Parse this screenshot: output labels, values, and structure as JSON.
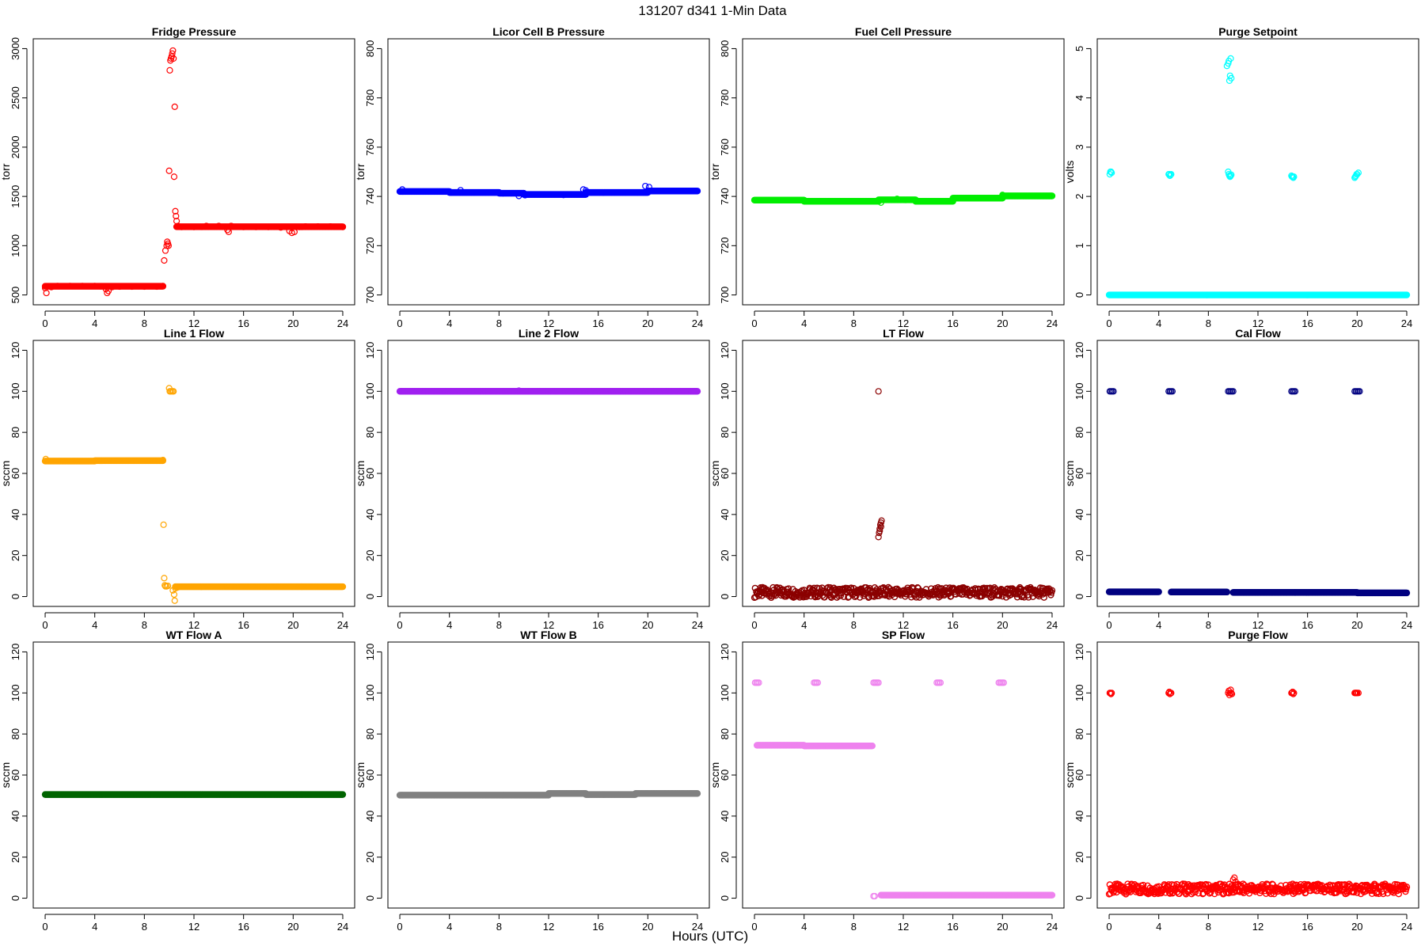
{
  "figure": {
    "title": "131207    d341    1-Min Data",
    "xlabel": "Hours (UTC)"
  },
  "chart_data": [
    {
      "type": "scatter",
      "title": "Fridge Pressure",
      "ylabel": "torr",
      "xlim": [
        0,
        24
      ],
      "ylim": [
        500,
        3000
      ],
      "xticks": [
        0,
        4,
        8,
        12,
        16,
        20,
        24
      ],
      "yticks": [
        500,
        1000,
        1500,
        2000,
        2500,
        3000
      ],
      "color": "#ff0000",
      "points": [
        [
          0.0,
          570
        ],
        [
          0.1,
          520
        ],
        [
          0.5,
          580
        ],
        [
          1,
          590
        ],
        [
          2,
          590
        ],
        [
          3,
          590
        ],
        [
          4,
          590
        ],
        [
          4.9,
          560
        ],
        [
          5,
          520
        ],
        [
          5.1,
          540
        ],
        [
          5.4,
          580
        ],
        [
          6,
          585
        ],
        [
          7,
          585
        ],
        [
          8,
          585
        ],
        [
          9,
          585
        ],
        [
          9.5,
          590
        ],
        [
          9.6,
          850
        ],
        [
          9.7,
          950
        ],
        [
          9.8,
          1000
        ],
        [
          9.85,
          1040
        ],
        [
          9.9,
          1020
        ],
        [
          9.95,
          1000
        ],
        [
          10.0,
          1760
        ],
        [
          10.05,
          2780
        ],
        [
          10.1,
          2880
        ],
        [
          10.15,
          2900
        ],
        [
          10.2,
          2920
        ],
        [
          10.25,
          2950
        ],
        [
          10.3,
          2980
        ],
        [
          10.35,
          2900
        ],
        [
          10.4,
          1700
        ],
        [
          10.45,
          2410
        ],
        [
          10.5,
          1350
        ],
        [
          10.55,
          1300
        ],
        [
          10.6,
          1250
        ],
        [
          10.7,
          1200
        ],
        [
          11,
          1190
        ],
        [
          12,
          1190
        ],
        [
          13,
          1200
        ],
        [
          14,
          1200
        ],
        [
          14.7,
          1160
        ],
        [
          14.8,
          1140
        ],
        [
          15,
          1200
        ],
        [
          16,
          1190
        ],
        [
          17,
          1190
        ],
        [
          18,
          1190
        ],
        [
          19,
          1185
        ],
        [
          19.7,
          1150
        ],
        [
          19.9,
          1130
        ],
        [
          20.1,
          1140
        ],
        [
          20.5,
          1190
        ],
        [
          21,
          1195
        ],
        [
          22,
          1195
        ],
        [
          23,
          1195
        ],
        [
          24,
          1190
        ]
      ],
      "segments": [
        {
          "x": [
            0,
            9.5
          ],
          "y": 588
        },
        {
          "x": [
            10.6,
            24
          ],
          "y": 1192
        }
      ]
    },
    {
      "type": "scatter",
      "title": "Licor Cell B Pressure",
      "ylabel": "torr",
      "xlim": [
        0,
        24
      ],
      "ylim": [
        700,
        800
      ],
      "xticks": [
        0,
        4,
        8,
        12,
        16,
        20,
        24
      ],
      "yticks": [
        700,
        720,
        740,
        760,
        780,
        800
      ],
      "color": "#0000ff",
      "points": [
        [
          0.2,
          742.8
        ],
        [
          4.9,
          742.5
        ],
        [
          9.6,
          740.2
        ],
        [
          10.1,
          740.5
        ],
        [
          13.2,
          740.6
        ],
        [
          14.8,
          742.8
        ],
        [
          15.0,
          742.4
        ],
        [
          19.8,
          744.2
        ],
        [
          20.1,
          743.8
        ]
      ],
      "segments": [
        {
          "x": [
            0,
            4
          ],
          "y": 742
        },
        {
          "x": [
            4,
            8
          ],
          "y": 741.6
        },
        {
          "x": [
            8,
            10
          ],
          "y": 741.3
        },
        {
          "x": [
            10,
            15
          ],
          "y": 740.8
        },
        {
          "x": [
            15,
            20
          ],
          "y": 741.6
        },
        {
          "x": [
            20,
            24
          ],
          "y": 742.2
        }
      ]
    },
    {
      "type": "scatter",
      "title": "Fuel Cell Pressure",
      "ylabel": "torr",
      "xlim": [
        0,
        24
      ],
      "ylim": [
        700,
        800
      ],
      "xticks": [
        0,
        4,
        8,
        12,
        16,
        20,
        24
      ],
      "yticks": [
        700,
        720,
        740,
        760,
        780,
        800
      ],
      "color": "#00ee00",
      "points": [
        [
          10.2,
          737.5
        ],
        [
          11.5,
          739
        ],
        [
          13,
          738
        ],
        [
          20,
          740.6
        ]
      ],
      "segments": [
        {
          "x": [
            0,
            4
          ],
          "y": 738.5
        },
        {
          "x": [
            4,
            10
          ],
          "y": 738
        },
        {
          "x": [
            10,
            13
          ],
          "y": 738.6
        },
        {
          "x": [
            13,
            16
          ],
          "y": 738
        },
        {
          "x": [
            16,
            20
          ],
          "y": 739.3
        },
        {
          "x": [
            20,
            24
          ],
          "y": 740.2
        }
      ]
    },
    {
      "type": "scatter",
      "title": "Purge Setpoint",
      "ylabel": "volts",
      "xlim": [
        0,
        24
      ],
      "ylim": [
        0,
        5
      ],
      "xticks": [
        0,
        4,
        8,
        12,
        16,
        20,
        24
      ],
      "yticks": [
        0,
        1,
        2,
        3,
        4,
        5
      ],
      "color": "#00ffff",
      "points": [
        [
          0.05,
          2.45
        ],
        [
          0.1,
          2.5
        ],
        [
          0.15,
          2.5
        ],
        [
          0.2,
          2.48
        ],
        [
          4.8,
          2.45
        ],
        [
          4.85,
          2.45
        ],
        [
          4.9,
          2.42
        ],
        [
          4.95,
          2.44
        ],
        [
          5.0,
          2.45
        ],
        [
          9.6,
          2.5
        ],
        [
          9.65,
          2.45
        ],
        [
          9.7,
          2.42
        ],
        [
          9.75,
          2.4
        ],
        [
          9.8,
          2.42
        ],
        [
          9.85,
          2.44
        ],
        [
          9.5,
          4.65
        ],
        [
          9.6,
          4.7
        ],
        [
          9.65,
          4.75
        ],
        [
          9.7,
          4.35
        ],
        [
          9.75,
          4.45
        ],
        [
          9.8,
          4.8
        ],
        [
          9.85,
          4.4
        ],
        [
          14.7,
          2.42
        ],
        [
          14.75,
          2.4
        ],
        [
          14.8,
          2.4
        ],
        [
          14.85,
          2.38
        ],
        [
          14.9,
          2.4
        ],
        [
          19.8,
          2.38
        ],
        [
          19.85,
          2.4
        ],
        [
          19.9,
          2.42
        ],
        [
          19.95,
          2.45
        ],
        [
          20.0,
          2.45
        ],
        [
          20.1,
          2.48
        ],
        [
          9.7,
          0.0
        ]
      ],
      "segments": [
        {
          "x": [
            0,
            24
          ],
          "y": 0.0
        }
      ]
    },
    {
      "type": "scatter",
      "title": "Line 1 Flow",
      "ylabel": "sccm",
      "xlim": [
        0,
        24
      ],
      "ylim": [
        0,
        120
      ],
      "xticks": [
        0,
        4,
        8,
        12,
        16,
        20,
        24
      ],
      "yticks": [
        0,
        20,
        40,
        60,
        80,
        100,
        120
      ],
      "color": "#ffa500",
      "points": [
        [
          0.05,
          67
        ],
        [
          9.5,
          66.5
        ],
        [
          9.55,
          35
        ],
        [
          9.6,
          9
        ],
        [
          9.65,
          5.5
        ],
        [
          9.7,
          5
        ],
        [
          9.8,
          5
        ],
        [
          9.9,
          5.2
        ],
        [
          10.0,
          101.5
        ],
        [
          10.05,
          100
        ],
        [
          10.1,
          100
        ],
        [
          10.2,
          100
        ],
        [
          10.3,
          100
        ],
        [
          10.35,
          100
        ],
        [
          10.3,
          3
        ],
        [
          10.4,
          1
        ],
        [
          10.45,
          -2
        ],
        [
          10.5,
          4
        ],
        [
          10.7,
          4.5
        ]
      ],
      "segments": [
        {
          "x": [
            0,
            4
          ],
          "y": 66
        },
        {
          "x": [
            4,
            9.5
          ],
          "y": 66.2
        },
        {
          "x": [
            10.5,
            24
          ],
          "y": 4.8
        }
      ]
    },
    {
      "type": "scatter",
      "title": "Line 2 Flow",
      "ylabel": "sccm",
      "xlim": [
        0,
        24
      ],
      "ylim": [
        0,
        120
      ],
      "xticks": [
        0,
        4,
        8,
        12,
        16,
        20,
        24
      ],
      "yticks": [
        0,
        20,
        40,
        60,
        80,
        100,
        120
      ],
      "color": "#a020f0",
      "points": [
        [
          9.6,
          100.3
        ]
      ],
      "segments": [
        {
          "x": [
            0,
            24
          ],
          "y": 100
        }
      ]
    },
    {
      "type": "scatter",
      "title": "LT Flow",
      "ylabel": "sccm",
      "xlim": [
        0,
        24
      ],
      "ylim": [
        0,
        120
      ],
      "xticks": [
        0,
        4,
        8,
        12,
        16,
        20,
        24
      ],
      "yticks": [
        0,
        20,
        40,
        60,
        80,
        100,
        120
      ],
      "color": "#8b0000",
      "points": [
        [
          10.0,
          100
        ],
        [
          10.0,
          29
        ],
        [
          10.05,
          31
        ],
        [
          10.1,
          33
        ],
        [
          10.15,
          35
        ],
        [
          10.2,
          36
        ],
        [
          10.25,
          37
        ],
        [
          10.2,
          34
        ],
        [
          10.1,
          32
        ]
      ],
      "segments": [
        {
          "x": [
            0,
            24
          ],
          "y": 2,
          "spread": 2.5
        }
      ]
    },
    {
      "type": "scatter",
      "title": "Cal Flow",
      "ylabel": "sccm",
      "xlim": [
        0,
        24
      ],
      "ylim": [
        0,
        120
      ],
      "xticks": [
        0,
        4,
        8,
        12,
        16,
        20,
        24
      ],
      "yticks": [
        0,
        20,
        40,
        60,
        80,
        100,
        120
      ],
      "color": "#000080",
      "points": [
        [
          0.05,
          100
        ],
        [
          0.15,
          100
        ],
        [
          0.25,
          100
        ],
        [
          0.35,
          100
        ],
        [
          4.8,
          100
        ],
        [
          4.9,
          100
        ],
        [
          5.0,
          100
        ],
        [
          5.1,
          100
        ],
        [
          9.6,
          100
        ],
        [
          9.7,
          100
        ],
        [
          9.8,
          100
        ],
        [
          9.9,
          100
        ],
        [
          10.0,
          100
        ],
        [
          14.7,
          100
        ],
        [
          14.8,
          100
        ],
        [
          14.9,
          100
        ],
        [
          15.0,
          100
        ],
        [
          19.8,
          100
        ],
        [
          19.9,
          100
        ],
        [
          20.0,
          100
        ],
        [
          20.1,
          100
        ],
        [
          20.2,
          100
        ]
      ],
      "segments": [
        {
          "x": [
            0,
            4
          ],
          "y": 2.3
        },
        {
          "x": [
            5,
            9.5
          ],
          "y": 2.2
        },
        {
          "x": [
            10,
            15
          ],
          "y": 2.0
        },
        {
          "x": [
            15,
            20
          ],
          "y": 2.0
        },
        {
          "x": [
            20,
            24
          ],
          "y": 1.8
        }
      ]
    },
    {
      "type": "scatter",
      "title": "WT Flow A",
      "ylabel": "sccm",
      "xlim": [
        0,
        24
      ],
      "ylim": [
        0,
        120
      ],
      "xticks": [
        0,
        4,
        8,
        12,
        16,
        20,
        24
      ],
      "yticks": [
        0,
        20,
        40,
        60,
        80,
        100,
        120
      ],
      "color": "#006400",
      "points": [],
      "segments": [
        {
          "x": [
            0,
            24
          ],
          "y": 50.5
        }
      ]
    },
    {
      "type": "scatter",
      "title": "WT Flow B",
      "ylabel": "sccm",
      "xlim": [
        0,
        24
      ],
      "ylim": [
        0,
        120
      ],
      "xticks": [
        0,
        4,
        8,
        12,
        16,
        20,
        24
      ],
      "yticks": [
        0,
        20,
        40,
        60,
        80,
        100,
        120
      ],
      "color": "#808080",
      "points": [],
      "segments": [
        {
          "x": [
            0,
            12
          ],
          "y": 50.2
        },
        {
          "x": [
            12,
            15
          ],
          "y": 51
        },
        {
          "x": [
            15,
            19
          ],
          "y": 50.5
        },
        {
          "x": [
            19,
            24
          ],
          "y": 51
        }
      ]
    },
    {
      "type": "scatter",
      "title": "SP Flow",
      "ylabel": "sccm",
      "xlim": [
        0,
        24
      ],
      "ylim": [
        0,
        120
      ],
      "xticks": [
        0,
        4,
        8,
        12,
        16,
        20,
        24
      ],
      "yticks": [
        0,
        20,
        40,
        60,
        80,
        100,
        120
      ],
      "color": "#ee82ee",
      "points": [
        [
          0.05,
          105
        ],
        [
          0.15,
          105
        ],
        [
          0.25,
          105
        ],
        [
          0.35,
          105
        ],
        [
          4.8,
          105
        ],
        [
          4.9,
          105
        ],
        [
          5.0,
          105
        ],
        [
          5.1,
          105
        ],
        [
          9.6,
          105
        ],
        [
          9.7,
          105
        ],
        [
          9.8,
          105
        ],
        [
          9.9,
          105
        ],
        [
          10.0,
          105
        ],
        [
          14.7,
          105
        ],
        [
          14.8,
          105
        ],
        [
          14.9,
          105
        ],
        [
          15.0,
          105
        ],
        [
          19.7,
          105
        ],
        [
          19.8,
          105
        ],
        [
          19.9,
          105
        ],
        [
          20.0,
          105
        ],
        [
          20.1,
          105
        ],
        [
          9.6,
          1.0
        ],
        [
          9.7,
          1.0
        ]
      ],
      "segments": [
        {
          "x": [
            0.2,
            4
          ],
          "y": 74.5
        },
        {
          "x": [
            4,
            9.5
          ],
          "y": 74.2
        },
        {
          "x": [
            10.2,
            24
          ],
          "y": 1.5
        }
      ]
    },
    {
      "type": "scatter",
      "title": "Purge Flow",
      "ylabel": "sccm",
      "xlim": [
        0,
        24
      ],
      "ylim": [
        0,
        120
      ],
      "xticks": [
        0,
        4,
        8,
        12,
        16,
        20,
        24
      ],
      "yticks": [
        0,
        20,
        40,
        60,
        80,
        100,
        120
      ],
      "color": "#ff0000",
      "points": [
        [
          0.05,
          100
        ],
        [
          0.1,
          100
        ],
        [
          0.15,
          99.5
        ],
        [
          0.2,
          100
        ],
        [
          4.8,
          100
        ],
        [
          4.85,
          100.5
        ],
        [
          4.9,
          99.5
        ],
        [
          4.95,
          100
        ],
        [
          5.0,
          100
        ],
        [
          9.6,
          100
        ],
        [
          9.65,
          101
        ],
        [
          9.7,
          99
        ],
        [
          9.75,
          100
        ],
        [
          9.8,
          101.5
        ],
        [
          9.85,
          100
        ],
        [
          9.9,
          99.5
        ],
        [
          14.7,
          100
        ],
        [
          14.75,
          100
        ],
        [
          14.8,
          100.5
        ],
        [
          14.85,
          99.5
        ],
        [
          14.9,
          100
        ],
        [
          19.8,
          100
        ],
        [
          19.85,
          100
        ],
        [
          19.9,
          100
        ],
        [
          19.95,
          100
        ],
        [
          20.0,
          100
        ],
        [
          20.1,
          100
        ],
        [
          10.0,
          9
        ],
        [
          10.1,
          10
        ],
        [
          10.2,
          8
        ]
      ],
      "segments": [
        {
          "x": [
            0,
            24
          ],
          "y": 4.5,
          "spread": 2.5
        }
      ]
    }
  ]
}
